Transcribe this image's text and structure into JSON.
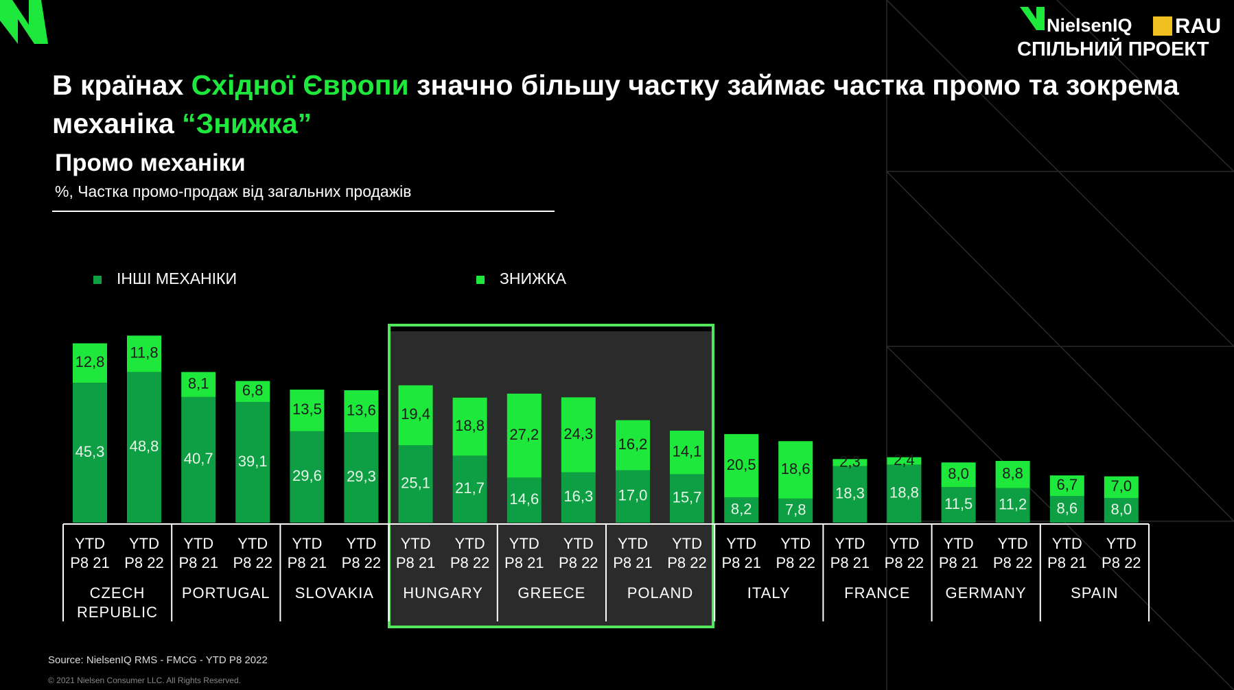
{
  "page": {
    "title_parts": [
      "В країнах ",
      "Східної Європи",
      " значно більшу частку займає частка промо та зокрема механіка ",
      "“Знижка”"
    ],
    "logo_name": "NielsenIQ",
    "logo_partner": "RAU",
    "logo_caption": "СПІЛЬНИЙ ПРОЕКТ",
    "source": "Source: NielsenIQ RMS  - FMCG - YTD P8 2022",
    "copyright": "© 2021 Nielsen Consumer LLC. All Rights Reserved."
  },
  "chart_data": {
    "type": "stacked_bar",
    "title": "Промо механіки",
    "subtitle": "%, Частка промо-продаж від загальних продажів",
    "categories": [
      "YTD\nP8 21",
      "YTD\nP8 22",
      "YTD\nP8 21",
      "YTD\nP8 22",
      "YTD\nP8 21",
      "YTD\nP8 22",
      "YTD\nP8 21",
      "YTD\nP8 22",
      "YTD\nP8 21",
      "YTD\nP8 22",
      "YTD\nP8 21",
      "YTD\nP8 22",
      "YTD\nP8 21",
      "YTD\nP8 22",
      "YTD\nP8 21",
      "YTD\nP8 22",
      "YTD\nP8 21",
      "YTD\nP8 22",
      "YTD\nP8 21",
      "YTD\nP8 22"
    ],
    "groups": [
      "CZECH REPUBLIC",
      "PORTUGAL",
      "SLOVAKIA",
      "HUNGARY",
      "GREECE",
      "POLAND",
      "ITALY",
      "FRANCE",
      "GERMANY",
      "SPAIN"
    ],
    "series": [
      {
        "name": "ІНШІ МЕХАНІКИ",
        "color": "#0e9f45",
        "label_color": "#e6f5e8",
        "values": [
          45.3,
          48.8,
          40.7,
          39.1,
          29.6,
          29.3,
          25.1,
          21.7,
          14.6,
          16.3,
          17.0,
          15.7,
          8.2,
          7.8,
          18.3,
          18.8,
          11.5,
          11.2,
          8.6,
          8.0
        ],
        "value_labels": [
          "45,3",
          "48,8",
          "40,7",
          "39,1",
          "29,6",
          "29,3",
          "25,1",
          "21,7",
          "14,6",
          "16,3",
          "17,0",
          "15,7",
          "8,2",
          "7,8",
          "18,3",
          "18,8",
          "11,5",
          "11,2",
          "8,6",
          "8,0"
        ]
      },
      {
        "name": "ЗНИЖКА",
        "color": "#1ee83c",
        "label_color": "#1a1a1a",
        "values": [
          12.8,
          11.8,
          8.1,
          6.8,
          13.5,
          13.6,
          19.4,
          18.8,
          27.2,
          24.3,
          16.2,
          14.1,
          20.5,
          18.6,
          2.3,
          2.4,
          8.0,
          8.8,
          6.7,
          7.0
        ],
        "value_labels": [
          "12,8",
          "11,8",
          "8,1",
          "6,8",
          "13,5",
          "13,6",
          "19,4",
          "18,8",
          "27,2",
          "24,3",
          "16,2",
          "14,1",
          "20,5",
          "18,6",
          "2,3",
          "2,4",
          "8,0",
          "8,8",
          "6,7",
          "7,0"
        ]
      }
    ],
    "legend": "top-left"
  }
}
